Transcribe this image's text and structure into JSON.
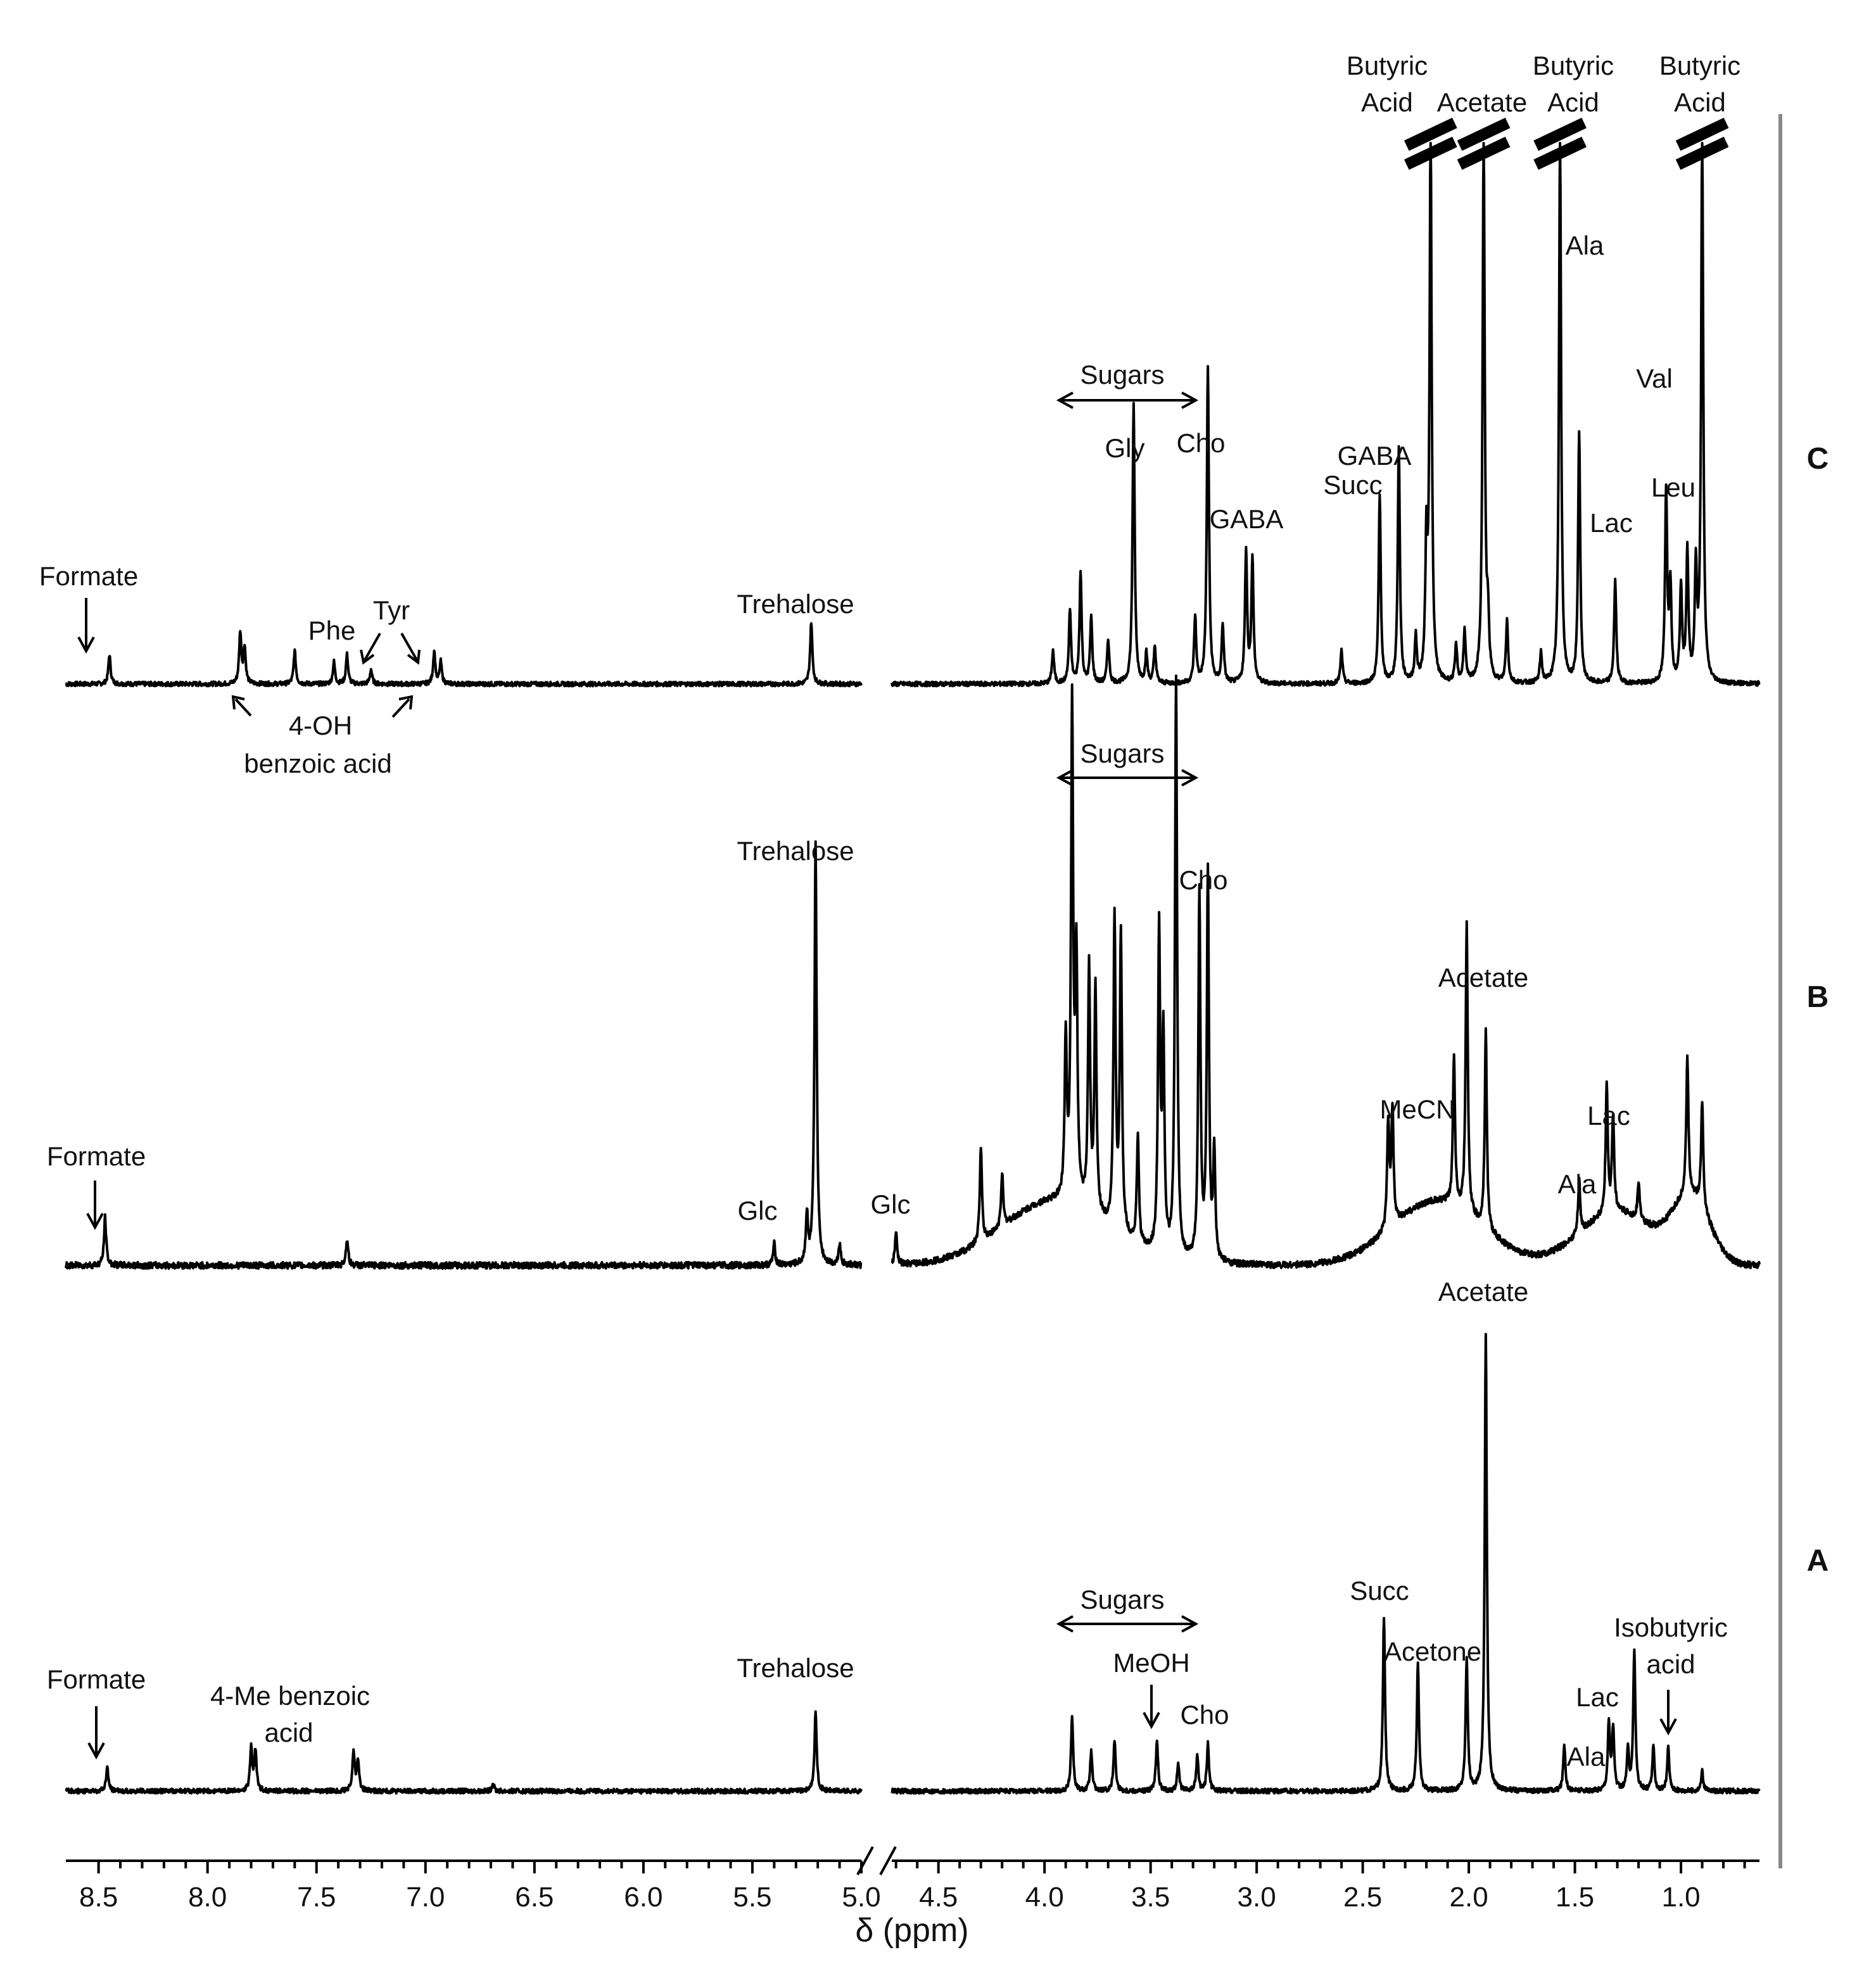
{
  "chart_data": {
    "type": "line",
    "title": "",
    "xlabel": "δ (ppm)",
    "ylabel": "",
    "x_direction": "reversed",
    "xlim": [
      8.65,
      0.63
    ],
    "axis_break_between": [
      5.0,
      4.72
    ],
    "x_ticks": [
      "8.5",
      "8.0",
      "7.5",
      "7.0",
      "6.5",
      "6.0",
      "5.5",
      "5.0",
      "4.5",
      "4.0",
      "3.5",
      "3.0",
      "2.5",
      "2.0",
      "1.5",
      "1.0"
    ],
    "grid": false,
    "legend": "none",
    "series": [
      {
        "name": "C",
        "baseline": 0,
        "truncated_peaks_ppm": [
          2.18,
          1.93,
          1.57,
          0.9
        ],
        "peaks": [
          {
            "ppm": 8.45,
            "height": 8
          },
          {
            "ppm": 7.85,
            "height": 14
          },
          {
            "ppm": 7.83,
            "height": 10
          },
          {
            "ppm": 7.6,
            "height": 9
          },
          {
            "ppm": 7.42,
            "height": 6
          },
          {
            "ppm": 7.36,
            "height": 8
          },
          {
            "ppm": 7.25,
            "height": 4
          },
          {
            "ppm": 6.96,
            "height": 9
          },
          {
            "ppm": 6.93,
            "height": 6
          },
          {
            "ppm": 5.23,
            "height": 17
          },
          {
            "ppm": 3.96,
            "height": 9
          },
          {
            "ppm": 3.88,
            "height": 20
          },
          {
            "ppm": 3.83,
            "height": 30
          },
          {
            "ppm": 3.78,
            "height": 18
          },
          {
            "ppm": 3.7,
            "height": 12
          },
          {
            "ppm": 3.58,
            "height": 76
          },
          {
            "ppm": 3.52,
            "height": 8
          },
          {
            "ppm": 3.48,
            "height": 10
          },
          {
            "ppm": 3.29,
            "height": 18
          },
          {
            "ppm": 3.23,
            "height": 86
          },
          {
            "ppm": 3.16,
            "height": 16
          },
          {
            "ppm": 3.05,
            "height": 36
          },
          {
            "ppm": 3.02,
            "height": 34
          },
          {
            "ppm": 2.6,
            "height": 9
          },
          {
            "ppm": 2.42,
            "height": 51
          },
          {
            "ppm": 2.33,
            "height": 64
          },
          {
            "ppm": 2.25,
            "height": 12
          },
          {
            "ppm": 2.2,
            "height": 35
          },
          {
            "ppm": 2.18,
            "height": 150
          },
          {
            "ppm": 2.06,
            "height": 10
          },
          {
            "ppm": 2.02,
            "height": 14
          },
          {
            "ppm": 1.93,
            "height": 150
          },
          {
            "ppm": 1.91,
            "height": 15
          },
          {
            "ppm": 1.82,
            "height": 17
          },
          {
            "ppm": 1.66,
            "height": 8
          },
          {
            "ppm": 1.57,
            "height": 150
          },
          {
            "ppm": 1.48,
            "height": 68
          },
          {
            "ppm": 1.31,
            "height": 28
          },
          {
            "ppm": 1.07,
            "height": 52
          },
          {
            "ppm": 1.05,
            "height": 26
          },
          {
            "ppm": 1.0,
            "height": 26
          },
          {
            "ppm": 0.97,
            "height": 35
          },
          {
            "ppm": 0.93,
            "height": 30
          },
          {
            "ppm": 0.9,
            "height": 150
          }
        ]
      },
      {
        "name": "B",
        "baseline": 0,
        "peaks": [
          {
            "ppm": 8.47,
            "height": 9
          },
          {
            "ppm": 7.36,
            "height": 5
          },
          {
            "ppm": 5.4,
            "height": 4
          },
          {
            "ppm": 5.25,
            "height": 9
          },
          {
            "ppm": 5.21,
            "height": 79
          },
          {
            "ppm": 5.1,
            "height": 4
          },
          {
            "ppm": 4.7,
            "height": 6
          },
          {
            "ppm": 4.3,
            "height": 18
          },
          {
            "ppm": 4.2,
            "height": 10
          },
          {
            "ppm": 3.9,
            "height": 30
          },
          {
            "ppm": 3.87,
            "height": 92
          },
          {
            "ppm": 3.85,
            "height": 45
          },
          {
            "ppm": 3.79,
            "height": 45
          },
          {
            "ppm": 3.76,
            "height": 42
          },
          {
            "ppm": 3.67,
            "height": 58
          },
          {
            "ppm": 3.64,
            "height": 56
          },
          {
            "ppm": 3.56,
            "height": 20
          },
          {
            "ppm": 3.46,
            "height": 60
          },
          {
            "ppm": 3.44,
            "height": 40
          },
          {
            "ppm": 3.38,
            "height": 109
          },
          {
            "ppm": 3.27,
            "height": 69
          },
          {
            "ppm": 3.23,
            "height": 73
          },
          {
            "ppm": 3.2,
            "height": 20
          },
          {
            "ppm": 2.38,
            "height": 20
          },
          {
            "ppm": 2.36,
            "height": 22
          },
          {
            "ppm": 2.07,
            "height": 28
          },
          {
            "ppm": 2.01,
            "height": 54
          },
          {
            "ppm": 1.92,
            "height": 37
          },
          {
            "ppm": 1.48,
            "height": 10
          },
          {
            "ppm": 1.35,
            "height": 24
          },
          {
            "ppm": 1.32,
            "height": 18
          },
          {
            "ppm": 1.2,
            "height": 7
          },
          {
            "ppm": 0.97,
            "height": 26
          },
          {
            "ppm": 0.9,
            "height": 20
          }
        ],
        "broad_humps": [
          {
            "ppm": 3.95,
            "height": 12,
            "width": 0.35
          },
          {
            "ppm": 2.15,
            "height": 12,
            "width": 0.3
          },
          {
            "ppm": 1.3,
            "height": 10,
            "width": 0.25
          },
          {
            "ppm": 0.95,
            "height": 12,
            "width": 0.12
          }
        ]
      },
      {
        "name": "A",
        "baseline": 0,
        "peaks": [
          {
            "ppm": 8.46,
            "height": 6
          },
          {
            "ppm": 7.8,
            "height": 11
          },
          {
            "ppm": 7.78,
            "height": 10
          },
          {
            "ppm": 7.33,
            "height": 10
          },
          {
            "ppm": 7.31,
            "height": 8
          },
          {
            "ppm": 6.69,
            "height": 2
          },
          {
            "ppm": 5.21,
            "height": 20
          },
          {
            "ppm": 3.87,
            "height": 19
          },
          {
            "ppm": 3.78,
            "height": 10
          },
          {
            "ppm": 3.67,
            "height": 13
          },
          {
            "ppm": 3.47,
            "height": 13
          },
          {
            "ppm": 3.37,
            "height": 7
          },
          {
            "ppm": 3.28,
            "height": 9
          },
          {
            "ppm": 3.23,
            "height": 12
          },
          {
            "ppm": 2.4,
            "height": 44
          },
          {
            "ppm": 2.24,
            "height": 33
          },
          {
            "ppm": 2.01,
            "height": 34
          },
          {
            "ppm": 1.92,
            "height": 116
          },
          {
            "ppm": 1.55,
            "height": 12
          },
          {
            "ppm": 1.34,
            "height": 17
          },
          {
            "ppm": 1.32,
            "height": 16
          },
          {
            "ppm": 1.25,
            "height": 10
          },
          {
            "ppm": 1.22,
            "height": 36
          },
          {
            "ppm": 1.13,
            "height": 11
          },
          {
            "ppm": 1.06,
            "height": 11
          },
          {
            "ppm": 0.9,
            "height": 5
          }
        ]
      }
    ],
    "annotations": [
      {
        "text": "Butyric",
        "series": "C"
      },
      {
        "text": "Acid",
        "series": "C"
      },
      {
        "text": "Acetate",
        "series": "C"
      },
      {
        "text": "Butyric",
        "series": "C"
      },
      {
        "text": "Acid",
        "series": "C"
      },
      {
        "text": "Butyric",
        "series": "C"
      },
      {
        "text": "Acid",
        "series": "C"
      },
      {
        "text": "Ala",
        "series": "C"
      },
      {
        "text": "Val",
        "series": "C"
      },
      {
        "text": "Sugars",
        "series": "C"
      },
      {
        "text": "Gly",
        "series": "C"
      },
      {
        "text": "Cho",
        "series": "C"
      },
      {
        "text": "GABA",
        "series": "C"
      },
      {
        "text": "Succ",
        "series": "C"
      },
      {
        "text": "GABA",
        "series": "C"
      },
      {
        "text": "Leu",
        "series": "C"
      },
      {
        "text": "Lac",
        "series": "C"
      },
      {
        "text": "Formate",
        "series": "C"
      },
      {
        "text": "Phe",
        "series": "C"
      },
      {
        "text": "Tyr",
        "series": "C"
      },
      {
        "text": "Trehalose",
        "series": "C"
      },
      {
        "text": "4-OH",
        "series": "C"
      },
      {
        "text": "benzoic acid",
        "series": "C"
      },
      {
        "text": "Sugars",
        "series": "B"
      },
      {
        "text": "Trehalose",
        "series": "B"
      },
      {
        "text": "Cho",
        "series": "B"
      },
      {
        "text": "Acetate",
        "series": "B"
      },
      {
        "text": "MeCN",
        "series": "B"
      },
      {
        "text": "Lac",
        "series": "B"
      },
      {
        "text": "Formate",
        "series": "B"
      },
      {
        "text": "Glc",
        "series": "B"
      },
      {
        "text": "Glc",
        "series": "B"
      },
      {
        "text": "Ala",
        "series": "B"
      },
      {
        "text": "Acetate",
        "series": "A"
      },
      {
        "text": "Sugars",
        "series": "A"
      },
      {
        "text": "Succ",
        "series": "A"
      },
      {
        "text": "Isobutyric",
        "series": "A"
      },
      {
        "text": "acid",
        "series": "A"
      },
      {
        "text": "Formate",
        "series": "A"
      },
      {
        "text": "4-Me benzoic",
        "series": "A"
      },
      {
        "text": "acid",
        "series": "A"
      },
      {
        "text": "Trehalose",
        "series": "A"
      },
      {
        "text": "MeOH",
        "series": "A"
      },
      {
        "text": "Acetone",
        "series": "A"
      },
      {
        "text": "Cho",
        "series": "A"
      },
      {
        "text": "Lac",
        "series": "A"
      },
      {
        "text": "Ala",
        "series": "A"
      }
    ]
  }
}
